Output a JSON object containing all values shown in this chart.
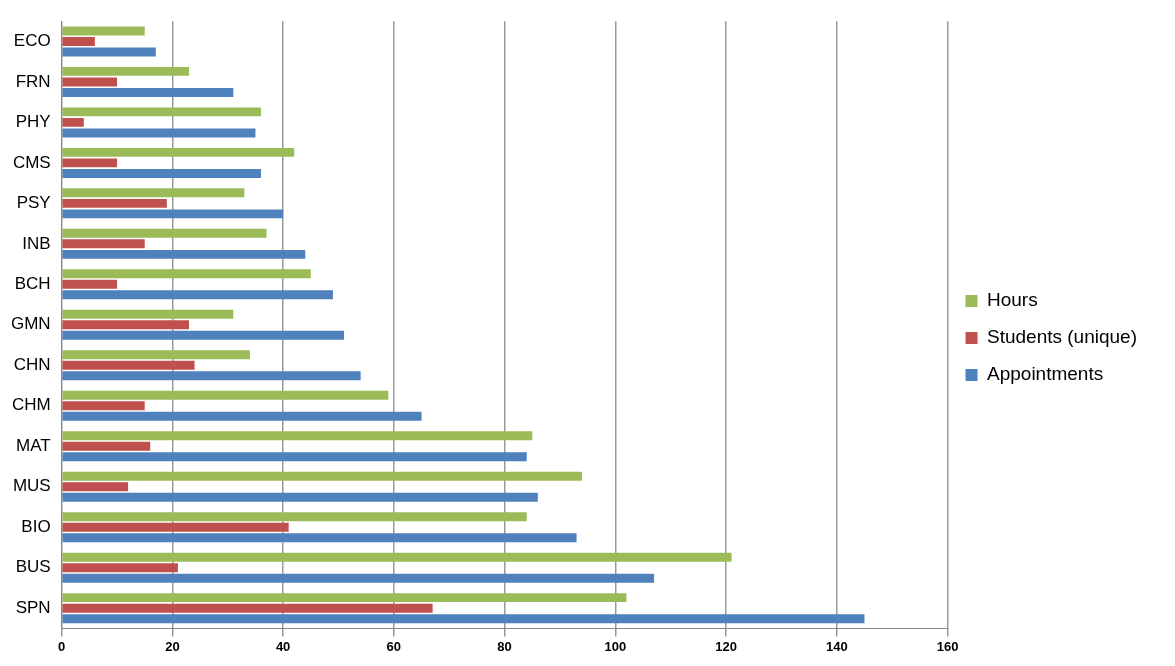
{
  "chart_data": {
    "type": "bar",
    "orientation": "horizontal",
    "categories": [
      "ECO",
      "FRN",
      "PHY",
      "CMS",
      "PSY",
      "INB",
      "BCH",
      "GMN",
      "CHN",
      "CHM",
      "MAT",
      "MUS",
      "BIO",
      "BUS",
      "SPN"
    ],
    "series": [
      {
        "name": "Hours",
        "color": "#9bbb59",
        "values": [
          15,
          23,
          36,
          42,
          33,
          37,
          45,
          31,
          34,
          59,
          85,
          94,
          84,
          121,
          102
        ]
      },
      {
        "name": "Students (unique)",
        "color": "#c0504d",
        "values": [
          6,
          10,
          4,
          10,
          19,
          15,
          10,
          23,
          24,
          15,
          16,
          12,
          41,
          21,
          67
        ]
      },
      {
        "name": "Appointments",
        "color": "#4f81bd",
        "values": [
          17,
          31,
          35,
          36,
          40,
          44,
          49,
          51,
          54,
          65,
          84,
          86,
          93,
          107,
          145
        ]
      }
    ],
    "xlim": [
      0,
      160
    ],
    "xticks": [
      0,
      20,
      40,
      60,
      80,
      100,
      120,
      140,
      160
    ],
    "grid": "x",
    "legend": "right"
  }
}
